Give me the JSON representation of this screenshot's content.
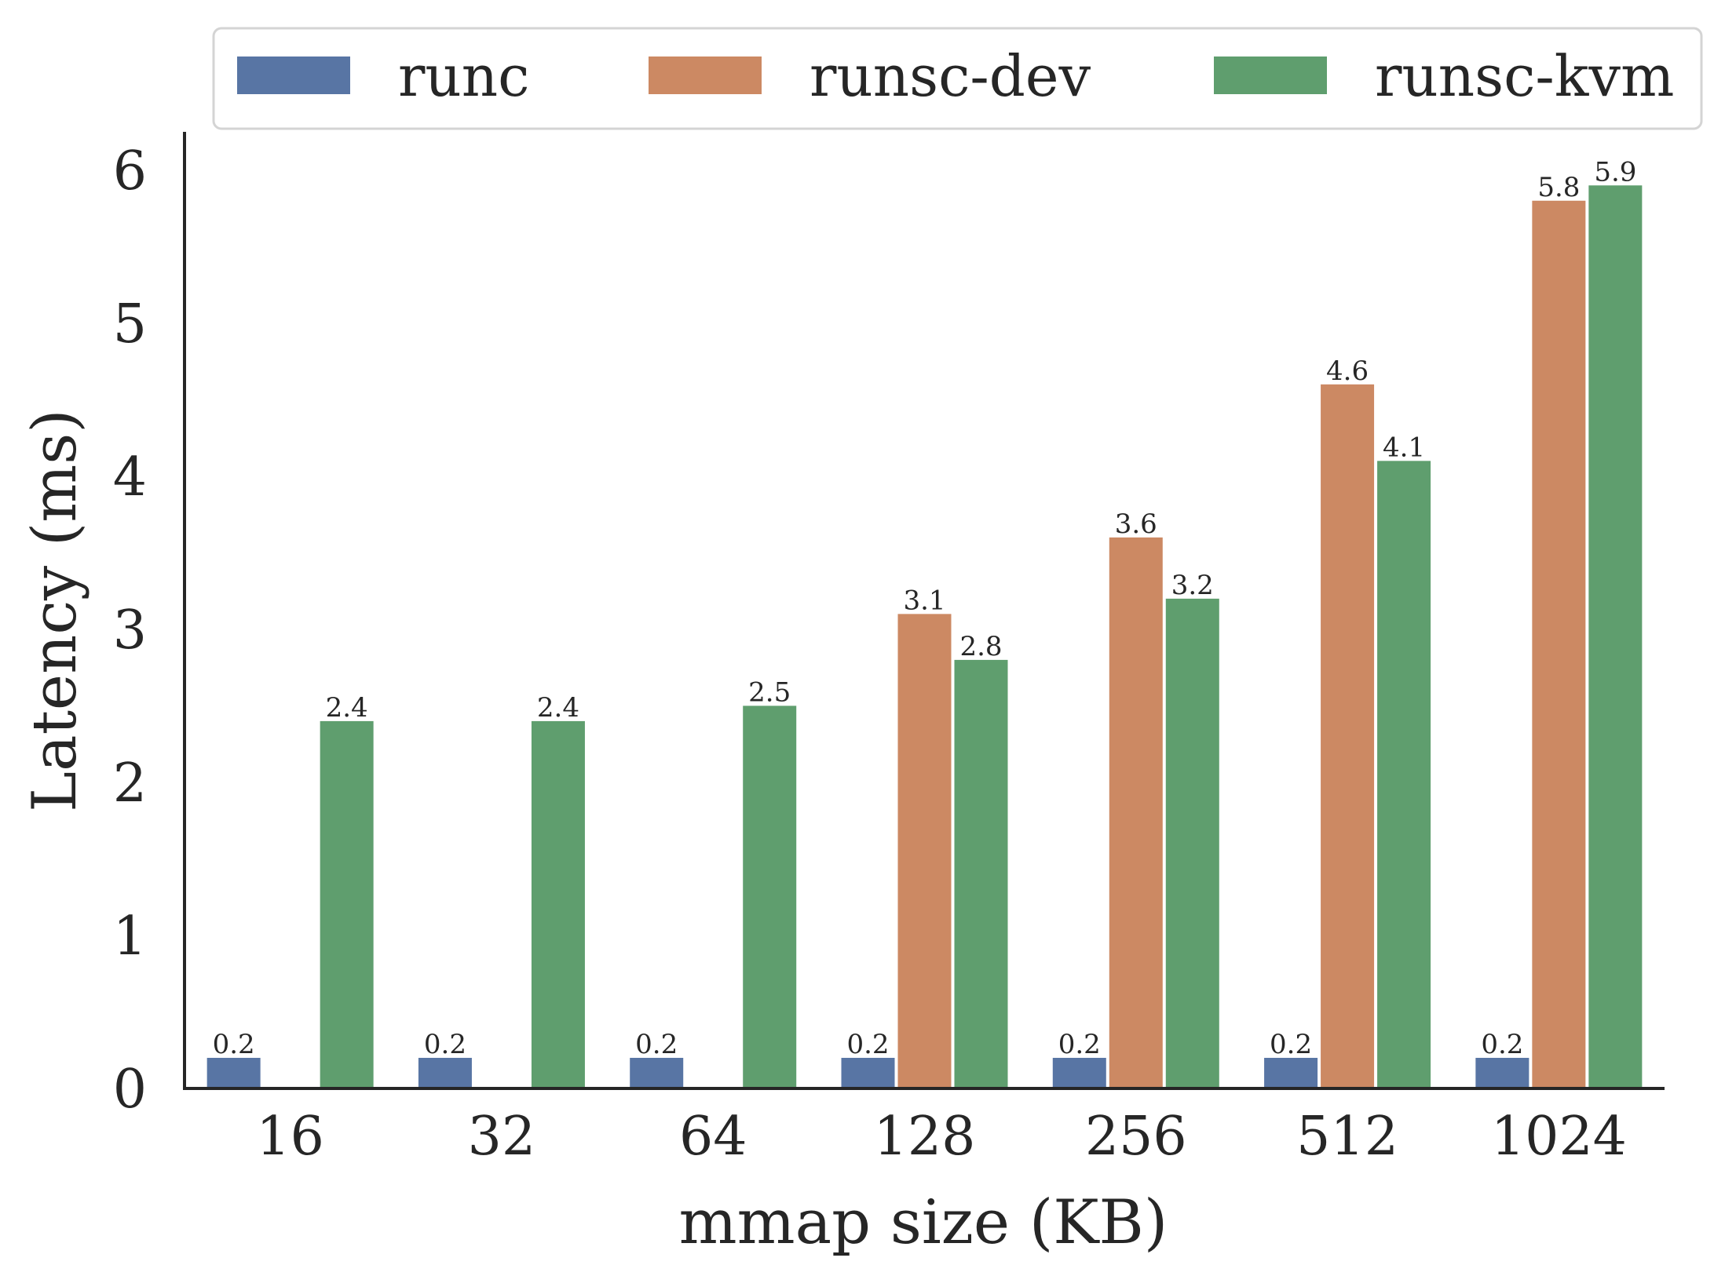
{
  "chart_data": {
    "type": "bar",
    "title": "",
    "xlabel": "mmap size (KB)",
    "ylabel": "Latency (ms)",
    "categories": [
      "16",
      "32",
      "64",
      "128",
      "256",
      "512",
      "1024"
    ],
    "ylim": [
      0,
      6.25
    ],
    "yticks": [
      0,
      1,
      2,
      3,
      4,
      5,
      6
    ],
    "grid": false,
    "legend_position": "top",
    "series": [
      {
        "name": "runc",
        "color": "#5875a4",
        "values": [
          0.2,
          0.2,
          0.2,
          0.2,
          0.2,
          0.2,
          0.2
        ],
        "labels": [
          "0.2",
          "0.2",
          "0.2",
          "0.2",
          "0.2",
          "0.2",
          "0.2"
        ]
      },
      {
        "name": "runsc-dev",
        "color": "#cc8963",
        "values": [
          null,
          null,
          null,
          3.1,
          3.6,
          4.6,
          5.8
        ],
        "labels": [
          "",
          "",
          "",
          "3.1",
          "3.6",
          "4.6",
          "5.8"
        ]
      },
      {
        "name": "runsc-kvm",
        "color": "#5f9e6e",
        "values": [
          2.4,
          2.4,
          2.5,
          2.8,
          3.2,
          4.1,
          5.9
        ],
        "labels": [
          "2.4",
          "2.4",
          "2.5",
          "2.8",
          "3.2",
          "4.1",
          "5.9"
        ]
      }
    ]
  }
}
